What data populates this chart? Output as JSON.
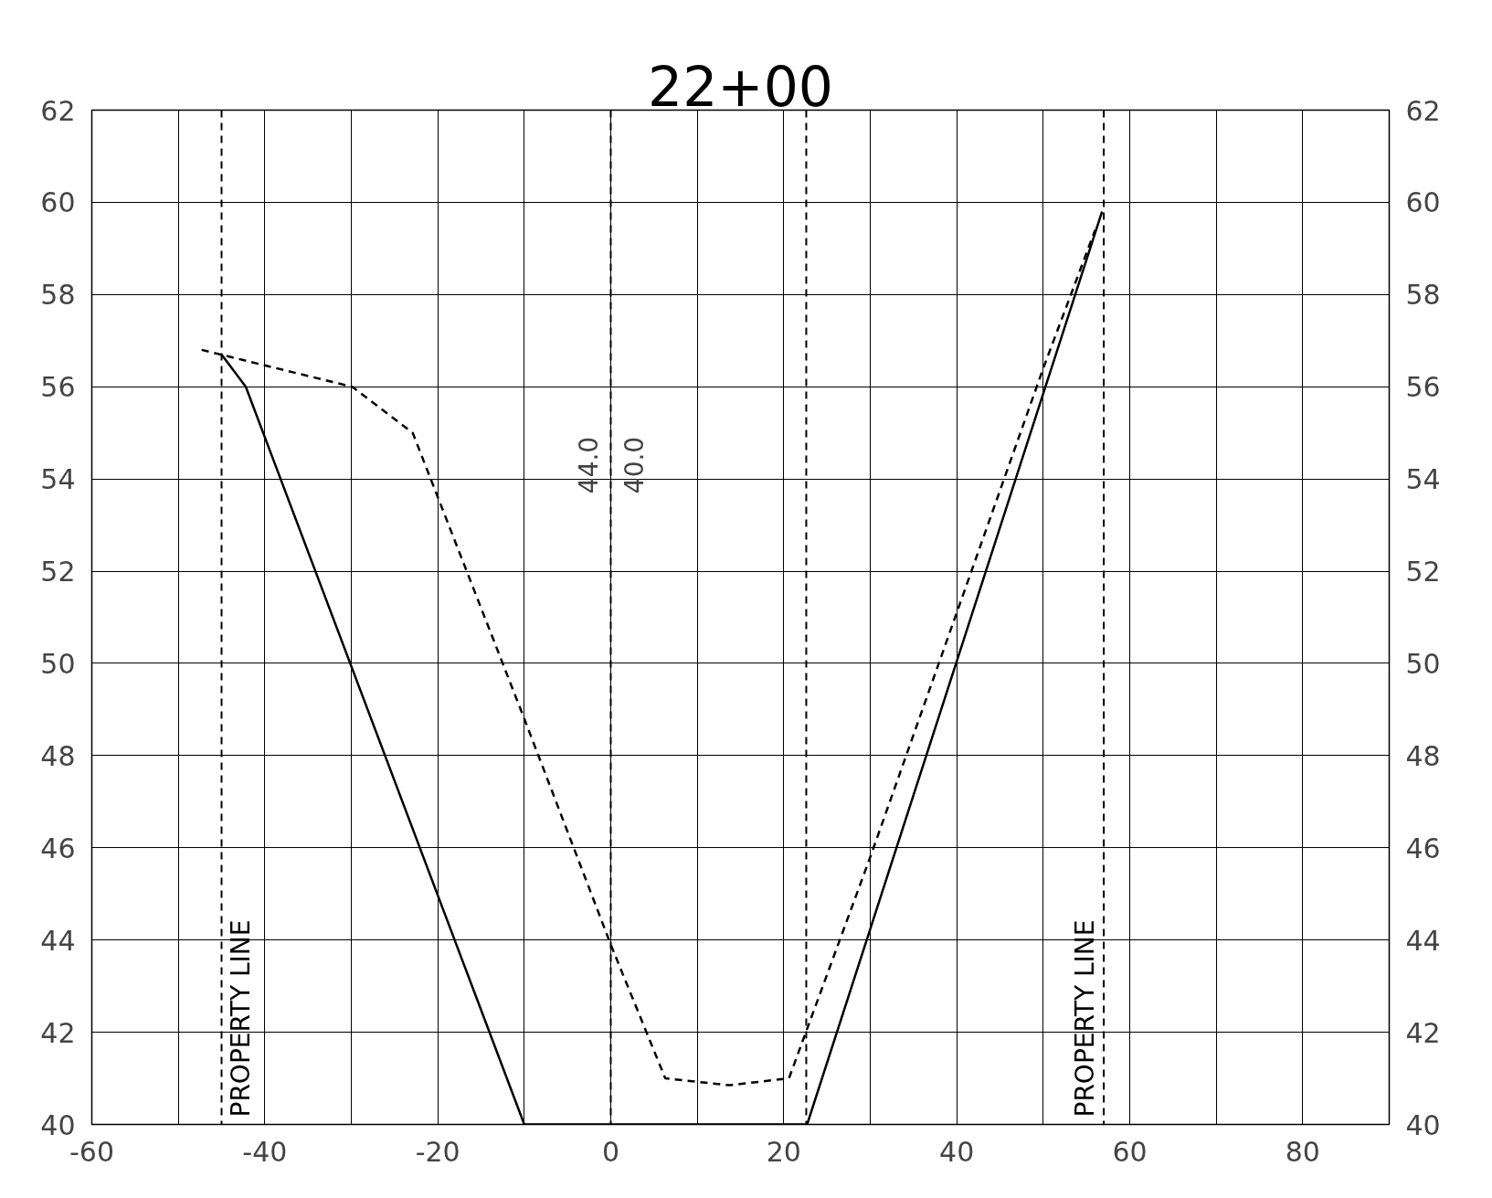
{
  "chart_data": {
    "type": "line",
    "title": "22+00",
    "series": [
      {
        "color": "#000000",
        "line_style": "solid",
        "x": [
          -45,
          -42.2,
          -10,
          22.7,
          56.8
        ],
        "values": [
          56.7,
          56,
          40,
          40,
          59.8
        ]
      },
      {
        "color": "#000000",
        "line_style": "dashed",
        "x": [
          -47.3,
          -29.9,
          -22.9,
          -10,
          0,
          6.3,
          13.7,
          20.6,
          30,
          40,
          50,
          56
        ],
        "values": [
          56.8,
          56,
          55,
          48.8,
          43.9,
          41,
          40.85,
          41,
          45.8,
          51.1,
          56.4,
          59.4
        ]
      }
    ],
    "xlim": [
      -60,
      90
    ],
    "xticks": [
      -60,
      {
        "value": -50,
        "label": null
      },
      -40,
      {
        "value": -30,
        "label": null
      },
      -20,
      {
        "value": -10,
        "label": null
      },
      0,
      {
        "value": 10,
        "label": null
      },
      20,
      {
        "value": 30,
        "label": null
      },
      40,
      {
        "value": 50,
        "label": null
      },
      60,
      {
        "value": 70,
        "label": null
      },
      80,
      {
        "value": 90,
        "label": null
      }
    ],
    "ylim": [
      40,
      62
    ],
    "yticks": [
      40,
      42,
      44,
      46,
      48,
      50,
      52,
      54,
      56,
      58,
      60,
      62
    ],
    "y2lim": [
      40,
      62
    ],
    "y2ticks": [
      40,
      42,
      44,
      46,
      48,
      50,
      52,
      54,
      56,
      58,
      60,
      62
    ],
    "ref_lines": [
      {
        "axis": "x",
        "value": -45,
        "label": "PROPERTY LINE",
        "color": "#000000",
        "line_style": "dashed"
      },
      {
        "axis": "x",
        "value": 0,
        "color": "#000000",
        "line_style": "dashed"
      },
      {
        "axis": "x",
        "value": 22.6,
        "color": "#000000",
        "line_style": "dashed"
      },
      {
        "axis": "x",
        "value": 57,
        "label": "PROPERTY LINE",
        "color": "#000000",
        "line_style": "dashed"
      }
    ],
    "annotations": [
      "44.0",
      "40.0"
    ],
    "grid": true,
    "marker": "none"
  }
}
